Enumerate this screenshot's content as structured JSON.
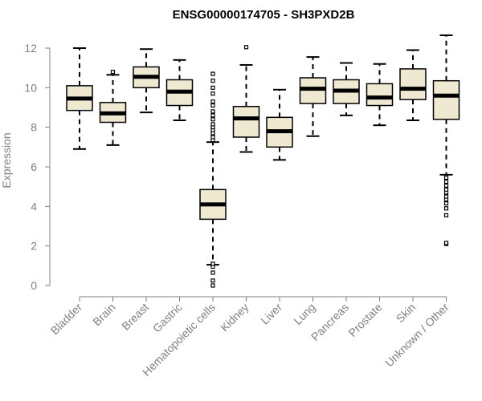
{
  "chart_data": {
    "type": "boxplot",
    "title": "ENSG00000174705 - SH3PXD2B",
    "xlabel": "",
    "ylabel": "Expression",
    "ylim": [
      0,
      12
    ],
    "yticks": [
      0,
      2,
      4,
      6,
      8,
      10,
      12
    ],
    "grid": false,
    "legend": "none",
    "colors": {
      "box_fill": "#efe9d2",
      "stroke": "#000000",
      "axis_text": "#808080"
    },
    "categories": [
      "Bladder",
      "Brain",
      "Breast",
      "Gastric",
      "Hematopoietic cells",
      "Kidney",
      "Liver",
      "Lung",
      "Pancreas",
      "Prostate",
      "Skin",
      "Unknown / Other"
    ],
    "boxes": [
      {
        "category": "Bladder",
        "whisker_low": 6.9,
        "q1": 8.85,
        "median": 9.45,
        "q3": 10.1,
        "whisker_high": 12.0,
        "outliers": []
      },
      {
        "category": "Brain",
        "whisker_low": 7.1,
        "q1": 8.25,
        "median": 8.7,
        "q3": 9.25,
        "whisker_high": 10.65,
        "outliers": [
          10.8
        ]
      },
      {
        "category": "Breast",
        "whisker_low": 8.75,
        "q1": 10.0,
        "median": 10.55,
        "q3": 11.05,
        "whisker_high": 11.95,
        "outliers": []
      },
      {
        "category": "Gastric",
        "whisker_low": 8.35,
        "q1": 9.1,
        "median": 9.8,
        "q3": 10.4,
        "whisker_high": 11.4,
        "outliers": []
      },
      {
        "category": "Hematopoietic cells",
        "whisker_low": 1.05,
        "q1": 3.35,
        "median": 4.1,
        "q3": 4.85,
        "whisker_high": 7.25,
        "outliers": [
          0.0,
          0.25,
          0.65,
          0.95,
          1.1,
          7.35,
          7.5,
          7.7,
          7.85,
          8.0,
          8.15,
          8.4,
          8.6,
          8.8,
          9.1,
          9.3,
          9.7,
          10.0,
          10.35,
          10.7
        ]
      },
      {
        "category": "Kidney",
        "whisker_low": 6.75,
        "q1": 7.5,
        "median": 8.45,
        "q3": 9.05,
        "whisker_high": 11.15,
        "outliers": [
          12.05
        ]
      },
      {
        "category": "Liver",
        "whisker_low": 6.35,
        "q1": 7.0,
        "median": 7.8,
        "q3": 8.5,
        "whisker_high": 9.9,
        "outliers": []
      },
      {
        "category": "Lung",
        "whisker_low": 7.55,
        "q1": 9.2,
        "median": 9.95,
        "q3": 10.5,
        "whisker_high": 11.55,
        "outliers": []
      },
      {
        "category": "Pancreas",
        "whisker_low": 8.6,
        "q1": 9.2,
        "median": 9.85,
        "q3": 10.4,
        "whisker_high": 11.25,
        "outliers": []
      },
      {
        "category": "Prostate",
        "whisker_low": 8.1,
        "q1": 9.1,
        "median": 9.5,
        "q3": 10.2,
        "whisker_high": 11.2,
        "outliers": []
      },
      {
        "category": "Skin",
        "whisker_low": 8.35,
        "q1": 9.4,
        "median": 9.95,
        "q3": 10.95,
        "whisker_high": 11.9,
        "outliers": []
      },
      {
        "category": "Unknown / Other",
        "whisker_low": 5.6,
        "q1": 8.4,
        "median": 9.6,
        "q3": 10.35,
        "whisker_high": 12.65,
        "outliers": [
          2.1,
          2.15,
          3.55,
          3.9,
          4.15,
          4.35,
          4.5,
          4.7,
          4.85,
          5.05,
          5.25,
          5.45
        ]
      }
    ]
  }
}
